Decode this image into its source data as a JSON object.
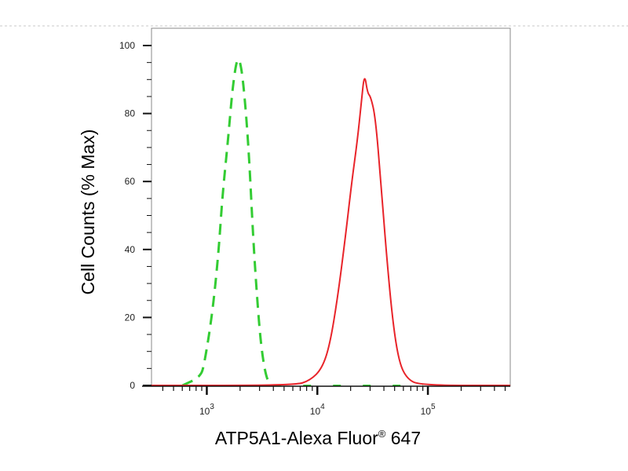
{
  "chart_data": {
    "type": "line",
    "title": "",
    "xlabel": "ATP5A1-Alexa Fluor® 647",
    "ylabel": "Cell Counts (% Max)",
    "xscale": "log",
    "xlim": [
      316,
      556000
    ],
    "ylim": [
      0,
      100
    ],
    "x_ticks": [
      1000,
      10000,
      100000
    ],
    "x_tick_labels": [
      {
        "base": "10",
        "exp": "3"
      },
      {
        "base": "10",
        "exp": "4"
      },
      {
        "base": "10",
        "exp": "5"
      }
    ],
    "y_ticks": [
      0,
      20,
      40,
      60,
      80,
      100
    ],
    "y_tick_labels": [
      "0",
      "20",
      "40",
      "60",
      "80",
      "100"
    ],
    "grid": false,
    "legend": "none",
    "series": [
      {
        "color": "#33cc33",
        "style": "dashed",
        "x": [
          603,
          878,
          952,
          1121,
          1277,
          1386,
          1554,
          1714,
          1892,
          2052,
          2228,
          2417,
          2620,
          2845,
          3085,
          3403,
          3752
        ],
        "y": [
          0,
          2.5,
          6.5,
          21,
          39,
          56,
          72,
          88,
          97,
          94,
          83,
          67,
          44,
          26,
          12,
          3,
          0
        ]
      },
      {
        "color": "#e8242a",
        "style": "solid",
        "x": [
          316,
          6220,
          8630,
          11030,
          12980,
          15280,
          17990,
          20500,
          23000,
          24950,
          26650,
          28460,
          30360,
          33500,
          37520,
          42070,
          47970,
          54700,
          64400,
          84900,
          556000
        ],
        "y": [
          0,
          0,
          1.5,
          5,
          12,
          26,
          44,
          60,
          72,
          83,
          92,
          86,
          85,
          79,
          60,
          39,
          19,
          7,
          2,
          0,
          0
        ]
      }
    ]
  }
}
